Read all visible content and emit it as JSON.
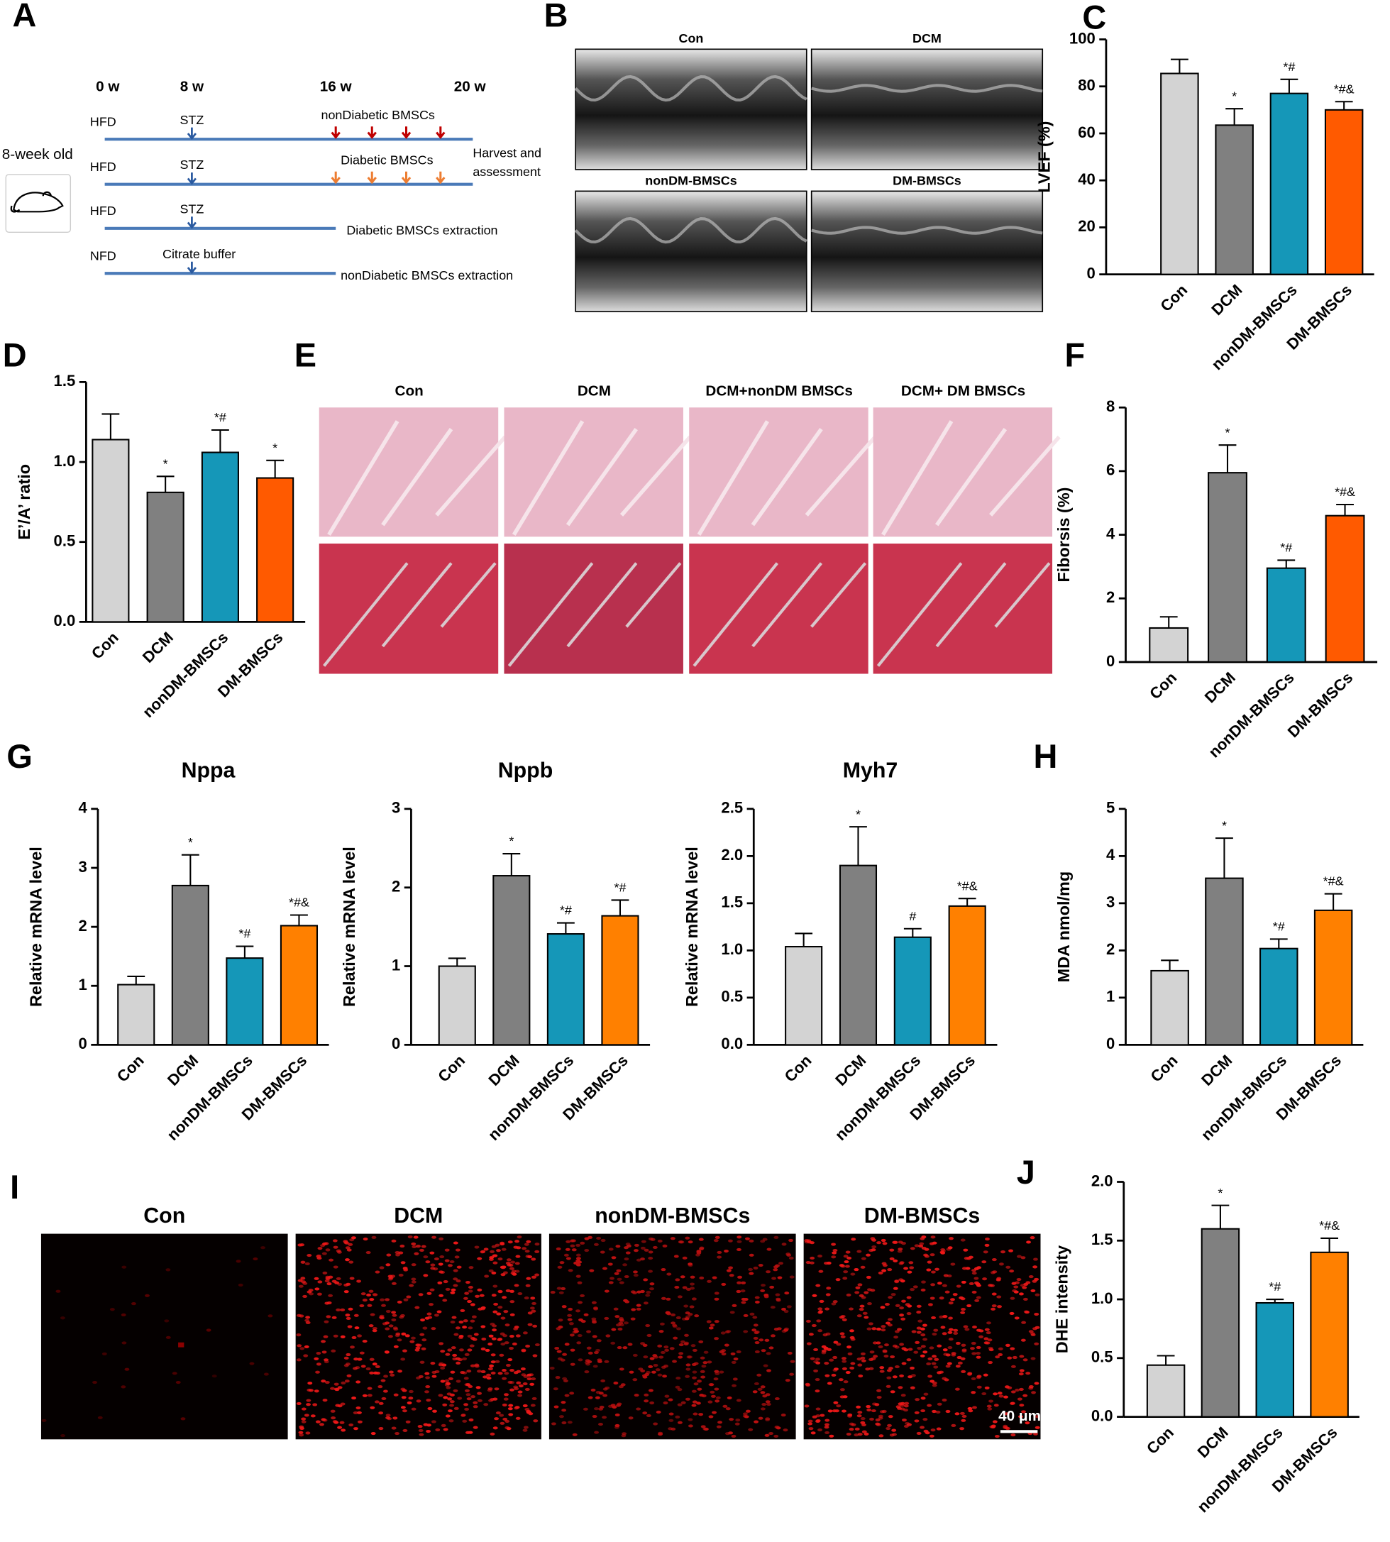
{
  "figure": {
    "panel_labels": [
      "A",
      "B",
      "E",
      "I"
    ],
    "timeline": {
      "weeks": [
        "0 w",
        "8 w",
        "16 w",
        "20 w"
      ],
      "age": "8-week old",
      "rows": [
        {
          "diet": "HFD",
          "injection": "STZ",
          "treatment": "nonDiabetic  BMSCs"
        },
        {
          "diet": "HFD",
          "injection": "STZ",
          "treatment": "Diabetic BMSCs"
        },
        {
          "diet": "HFD",
          "injection": "STZ",
          "treatment": "Diabetic BMSCs extraction"
        },
        {
          "diet": "NFD",
          "injection": "Citrate buffer",
          "treatment": "nonDiabetic BMSCs extraction"
        }
      ],
      "outcome": [
        "Harvest and",
        "assessment"
      ]
    },
    "echo": {
      "labels": [
        "Con",
        "DCM",
        "nonDM-BMSCs",
        "DM-BMSCs"
      ]
    },
    "histology": {
      "labels": [
        "Con",
        "DCM",
        "DCM+nonDM BMSCs",
        "DCM+ DM BMSCs"
      ]
    },
    "dhe": {
      "labels": [
        "Con",
        "DCM",
        "nonDM-BMSCs",
        "DM-BMSCs"
      ],
      "scale_bar": "40 μm"
    }
  },
  "chart_data": [
    {
      "type": "bar",
      "panel": "C",
      "ylabel": "LVEF (%)",
      "categories": [
        "Con",
        "DCM",
        "nonDM-BMSCs",
        "DM-BMSCs"
      ],
      "values": [
        85.5,
        63.5,
        77,
        70
      ],
      "errors": [
        6,
        7,
        6,
        3.5
      ],
      "annotations": [
        null,
        "*",
        "*#",
        "*#&"
      ],
      "colors": [
        "#d3d3d3",
        "#808080",
        "#1597b8",
        "#ff5a00"
      ],
      "ylim": [
        0,
        100
      ],
      "yticks": [
        0,
        20,
        40,
        60,
        80,
        100
      ]
    },
    {
      "type": "bar",
      "panel": "D",
      "ylabel": "E’/A’ ratio",
      "categories": [
        "Con",
        "DCM",
        "nonDM-BMSCs",
        "DM-BMSCs"
      ],
      "values": [
        1.14,
        0.81,
        1.06,
        0.9
      ],
      "errors": [
        0.16,
        0.1,
        0.14,
        0.11
      ],
      "annotations": [
        null,
        "*",
        "*#",
        "*"
      ],
      "colors": [
        "#d3d3d3",
        "#808080",
        "#1597b8",
        "#ff5a00"
      ],
      "ylim": [
        0,
        1.5
      ],
      "yticks": [
        {
          "value": 0,
          "label": "0.0"
        },
        0.5,
        {
          "value": 1,
          "label": "1.0"
        },
        1.5
      ]
    },
    {
      "type": "bar",
      "panel": "F",
      "ylabel": "Fiborsis (%)",
      "categories": [
        "Con",
        "DCM",
        "nonDM-BMSCs",
        "DM-BMSCs"
      ],
      "values": [
        1.07,
        5.95,
        2.95,
        4.6
      ],
      "errors": [
        0.35,
        0.87,
        0.25,
        0.35
      ],
      "annotations": [
        null,
        "*",
        "*#",
        "*#&"
      ],
      "colors": [
        "#d3d3d3",
        "#808080",
        "#1597b8",
        "#ff5a00"
      ],
      "ylim": [
        0,
        8
      ],
      "yticks": [
        0,
        2,
        4,
        6,
        8
      ]
    },
    {
      "type": "bar",
      "panel": "G",
      "title": "Nppa",
      "ylabel": "Relative mRNA level",
      "categories": [
        "Con",
        "DCM",
        "nonDM-BMSCs",
        "DM-BMSCs"
      ],
      "values": [
        1.02,
        2.7,
        1.47,
        2.02
      ],
      "errors": [
        0.14,
        0.52,
        0.2,
        0.18
      ],
      "annotations": [
        null,
        "*",
        "*#",
        "*#&"
      ],
      "colors": [
        "#d3d3d3",
        "#808080",
        "#1597b8",
        "#ff8000"
      ],
      "ylim": [
        0,
        4
      ],
      "yticks": [
        0,
        1,
        2,
        3,
        4
      ]
    },
    {
      "type": "bar",
      "title": "Nppb",
      "ylabel": "Relative mRNA level",
      "categories": [
        "Con",
        "DCM",
        "nonDM-BMSCs",
        "DM-BMSCs"
      ],
      "values": [
        1.0,
        2.15,
        1.41,
        1.64
      ],
      "errors": [
        0.1,
        0.28,
        0.14,
        0.2
      ],
      "annotations": [
        null,
        "*",
        "*#",
        "*#"
      ],
      "colors": [
        "#d3d3d3",
        "#808080",
        "#1597b8",
        "#ff8000"
      ],
      "ylim": [
        0,
        3
      ],
      "yticks": [
        0,
        1,
        2,
        3
      ]
    },
    {
      "type": "bar",
      "title": "Myh7",
      "ylabel": "Relative mRNA level",
      "categories": [
        "Con",
        "DCM",
        "nonDM-BMSCs",
        "DM-BMSCs"
      ],
      "values": [
        1.04,
        1.9,
        1.14,
        1.47
      ],
      "errors": [
        0.14,
        0.41,
        0.09,
        0.08
      ],
      "annotations": [
        null,
        "*",
        "#",
        "*#&"
      ],
      "colors": [
        "#d3d3d3",
        "#808080",
        "#1597b8",
        "#ff8000"
      ],
      "ylim": [
        0,
        2.5
      ],
      "yticks": [
        {
          "value": 0,
          "label": "0.0"
        },
        0.5,
        {
          "value": 1,
          "label": "1.0"
        },
        1.5,
        {
          "value": 2,
          "label": "2.0"
        },
        2.5
      ]
    },
    {
      "type": "bar",
      "panel": "H",
      "ylabel": "MDA nmol/mg",
      "categories": [
        "Con",
        "DCM",
        "nonDM-BMSCs",
        "DM-BMSCs"
      ],
      "values": [
        1.57,
        3.53,
        2.04,
        2.85
      ],
      "errors": [
        0.22,
        0.85,
        0.2,
        0.35
      ],
      "annotations": [
        null,
        "*",
        "*#",
        "*#&"
      ],
      "colors": [
        "#d3d3d3",
        "#808080",
        "#1597b8",
        "#ff8000"
      ],
      "ylim": [
        0,
        5
      ],
      "yticks": [
        0,
        1,
        2,
        3,
        4,
        5
      ]
    },
    {
      "type": "bar",
      "panel": "J",
      "ylabel": "DHE intensity",
      "categories": [
        "Con",
        "DCM",
        "nonDM-BMSCs",
        "DM-BMSCs"
      ],
      "values": [
        0.44,
        1.6,
        0.97,
        1.4
      ],
      "errors": [
        0.08,
        0.2,
        0.03,
        0.12
      ],
      "annotations": [
        null,
        "*",
        "*#",
        "*#&"
      ],
      "colors": [
        "#d3d3d3",
        "#808080",
        "#1597b8",
        "#ff8000"
      ],
      "ylim": [
        0,
        2
      ],
      "yticks": [
        {
          "value": 0,
          "label": "0.0"
        },
        0.5,
        {
          "value": 1,
          "label": "1.0"
        },
        1.5,
        {
          "value": 2,
          "label": "2.0"
        }
      ]
    }
  ]
}
